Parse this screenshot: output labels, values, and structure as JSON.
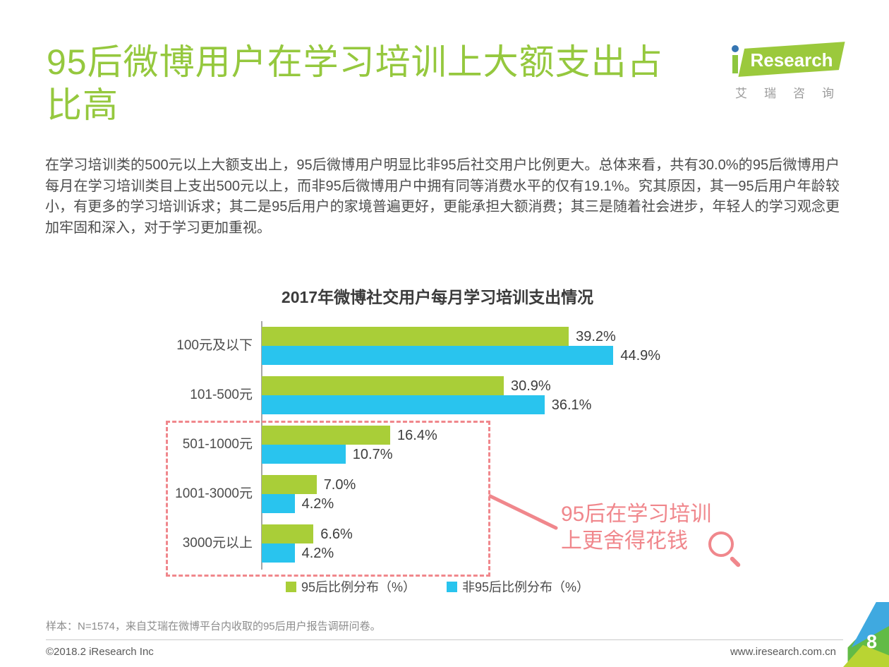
{
  "page": {
    "title": "95后微博用户在学习培训上大额支出占比高",
    "logo": {
      "brand": "iResearch",
      "brand_cn": "艾瑞咨询"
    },
    "paragraph": "在学习培训类的500元以上大额支出上，95后微博用户明显比非95后社交用户比例更大。总体来看，共有30.0%的95后微博用户每月在学习培训类目上支出500元以上，而非95后微博用户中拥有同等消费水平的仅有19.1%。究其原因，其一95后用户年龄较小，有更多的学习培训诉求；其二是95后用户的家境普遍更好，更能承担大额消费；其三是随着社会进步，年轻人的学习观念更加牢固和深入，对于学习更加重视。"
  },
  "chart_data": {
    "type": "bar",
    "orientation": "horizontal",
    "title": "2017年微博社交用户每月学习培训支出情况",
    "categories": [
      "100元及以下",
      "101-500元",
      "501-1000元",
      "1001-3000元",
      "3000元以上"
    ],
    "series": [
      {
        "name": "95后比例分布（%）",
        "color": "#a9ce38",
        "values": [
          39.2,
          30.9,
          16.4,
          7.0,
          6.6
        ]
      },
      {
        "name": "非95后比例分布（%）",
        "color": "#29c4ee",
        "values": [
          44.9,
          36.1,
          10.7,
          4.2,
          4.2
        ]
      }
    ],
    "value_suffix": "%",
    "xlim": [
      0,
      50
    ],
    "grid": false,
    "legend_position": "bottom",
    "annotation": {
      "text_line1": "95后在学习培训",
      "text_line2": "上更舍得花钱",
      "color": "#f0878c",
      "highlighted_categories": [
        "501-1000元",
        "1001-3000元",
        "3000元以上"
      ]
    }
  },
  "colors": {
    "title_green": "#95c83e",
    "logo_green": "#9bc93c",
    "logo_dot_blue": "#3575b2",
    "bar_green": "#a9ce38",
    "bar_blue": "#29c4ee",
    "highlight_pink": "#f0878c",
    "corner_blue": "#3fa9e0",
    "corner_green": "#62bb46",
    "corner_yellow_green": "#b9d433"
  },
  "footer": {
    "sample_note": "样本：N=1574，来自艾瑞在微博平台内收取的95后用户报告调研问卷。",
    "copyright": "©2018.2 iResearch Inc",
    "website": "www.iresearch.com.cn",
    "page_number": "8"
  }
}
